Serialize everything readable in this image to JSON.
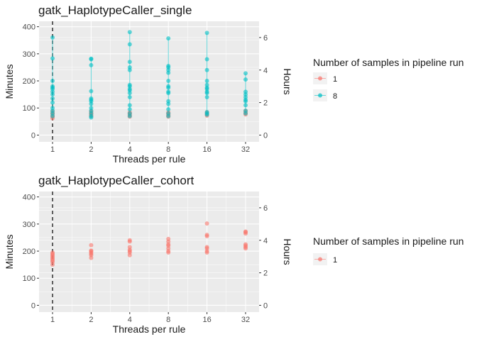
{
  "colors": {
    "panel_bg": "#EBEBEB",
    "grid_major": "#FFFFFF",
    "series_1": "#F8766D",
    "series_8": "#00BFC4",
    "tick_text": "#4D4D4D",
    "title_text": "#1A1A1A",
    "legend_key_bg": "#F2F2F2",
    "vline": "#000000"
  },
  "chart_data": [
    {
      "type": "scatter",
      "title": "gatk_HaplotypeCaller_single",
      "xlabel": "Threads per rule",
      "ylabel": "Minutes",
      "ylabel_right": "Hours",
      "x_scale": "log2",
      "x_ticks": [
        "1",
        "2",
        "4",
        "8",
        "16",
        "32"
      ],
      "y_ticks": [
        "0",
        "100",
        "200",
        "300",
        "400"
      ],
      "y_right_ticks": [
        "0",
        "2",
        "4",
        "6"
      ],
      "ylim": [
        -25,
        420
      ],
      "vline_x": 1,
      "grid": true,
      "legend": {
        "title": "Number of samples in pipeline run",
        "position": "right",
        "entries": [
          "1",
          "8"
        ]
      },
      "series": [
        {
          "name": "1",
          "color_key": "series_1",
          "points": [
            [
              1,
              62
            ],
            [
              1,
              68
            ],
            [
              1,
              72
            ],
            [
              1,
              78
            ],
            [
              1,
              82
            ],
            [
              1,
              88
            ],
            [
              2,
              70
            ],
            [
              2,
              74
            ],
            [
              2,
              78
            ],
            [
              2,
              83
            ],
            [
              2,
              88
            ],
            [
              4,
              68
            ],
            [
              4,
              72
            ],
            [
              4,
              76
            ],
            [
              4,
              80
            ],
            [
              4,
              84
            ],
            [
              8,
              68
            ],
            [
              8,
              72
            ],
            [
              8,
              76
            ],
            [
              8,
              80
            ],
            [
              8,
              84
            ],
            [
              16,
              72
            ],
            [
              16,
              76
            ],
            [
              16,
              80
            ],
            [
              16,
              84
            ],
            [
              32,
              76
            ],
            [
              32,
              80
            ],
            [
              32,
              85
            ],
            [
              32,
              90
            ]
          ],
          "ranges": [
            [
              1,
              62,
              88
            ],
            [
              2,
              70,
              88
            ],
            [
              4,
              68,
              84
            ],
            [
              8,
              68,
              84
            ],
            [
              16,
              72,
              84
            ],
            [
              32,
              76,
              90
            ]
          ]
        },
        {
          "name": "8",
          "color_key": "series_8",
          "points": [
            [
              1,
              70
            ],
            [
              1,
              80
            ],
            [
              1,
              90
            ],
            [
              1,
              100
            ],
            [
              1,
              120
            ],
            [
              1,
              135
            ],
            [
              1,
              150
            ],
            [
              1,
              160
            ],
            [
              1,
              170
            ],
            [
              1,
              175
            ],
            [
              1,
              180
            ],
            [
              1,
              200
            ],
            [
              1,
              283
            ],
            [
              1,
              360
            ],
            [
              2,
              65
            ],
            [
              2,
              70
            ],
            [
              2,
              80
            ],
            [
              2,
              90
            ],
            [
              2,
              100
            ],
            [
              2,
              115
            ],
            [
              2,
              125
            ],
            [
              2,
              130
            ],
            [
              2,
              135
            ],
            [
              2,
              162
            ],
            [
              2,
              258
            ],
            [
              2,
              280
            ],
            [
              2,
              282
            ],
            [
              4,
              70
            ],
            [
              4,
              80
            ],
            [
              4,
              95
            ],
            [
              4,
              110
            ],
            [
              4,
              140
            ],
            [
              4,
              155
            ],
            [
              4,
              165
            ],
            [
              4,
              170
            ],
            [
              4,
              180
            ],
            [
              4,
              185
            ],
            [
              4,
              240
            ],
            [
              4,
              250
            ],
            [
              4,
              270
            ],
            [
              4,
              335
            ],
            [
              4,
              380
            ],
            [
              8,
              70
            ],
            [
              8,
              80
            ],
            [
              8,
              95
            ],
            [
              8,
              115
            ],
            [
              8,
              125
            ],
            [
              8,
              155
            ],
            [
              8,
              160
            ],
            [
              8,
              175
            ],
            [
              8,
              180
            ],
            [
              8,
              200
            ],
            [
              8,
              230
            ],
            [
              8,
              240
            ],
            [
              8,
              250
            ],
            [
              8,
              255
            ],
            [
              8,
              357
            ],
            [
              16,
              75
            ],
            [
              16,
              80
            ],
            [
              16,
              85
            ],
            [
              16,
              140
            ],
            [
              16,
              155
            ],
            [
              16,
              160
            ],
            [
              16,
              170
            ],
            [
              16,
              175
            ],
            [
              16,
              185
            ],
            [
              16,
              200
            ],
            [
              16,
              240
            ],
            [
              16,
              280
            ],
            [
              16,
              377
            ],
            [
              32,
              80
            ],
            [
              32,
              90
            ],
            [
              32,
              110
            ],
            [
              32,
              125
            ],
            [
              32,
              130
            ],
            [
              32,
              140
            ],
            [
              32,
              150
            ],
            [
              32,
              160
            ],
            [
              32,
              205
            ],
            [
              32,
              228
            ]
          ],
          "ranges": [
            [
              1,
              70,
              360
            ],
            [
              2,
              65,
              282
            ],
            [
              4,
              70,
              380
            ],
            [
              8,
              70,
              357
            ],
            [
              16,
              75,
              377
            ],
            [
              32,
              80,
              228
            ]
          ]
        }
      ]
    },
    {
      "type": "scatter",
      "title": "gatk_HaplotypeCaller_cohort",
      "xlabel": "Threads per rule",
      "ylabel": "Minutes",
      "ylabel_right": "Hours",
      "x_scale": "log2",
      "x_ticks": [
        "1",
        "2",
        "4",
        "8",
        "16",
        "32"
      ],
      "y_ticks": [
        "0",
        "100",
        "200",
        "300",
        "400"
      ],
      "y_right_ticks": [
        "0",
        "2",
        "4",
        "6"
      ],
      "ylim": [
        -25,
        420
      ],
      "vline_x": 1,
      "grid": true,
      "legend": {
        "title": "Number of samples in pipeline run",
        "position": "right",
        "entries": [
          "1"
        ]
      },
      "series": [
        {
          "name": "1",
          "color_key": "series_1",
          "points": [
            [
              1,
              150
            ],
            [
              1,
              160
            ],
            [
              1,
              165
            ],
            [
              1,
              170
            ],
            [
              1,
              175
            ],
            [
              1,
              180
            ],
            [
              1,
              185
            ],
            [
              1,
              190
            ],
            [
              1,
              195
            ],
            [
              2,
              175
            ],
            [
              2,
              185
            ],
            [
              2,
              190
            ],
            [
              2,
              195
            ],
            [
              2,
              200
            ],
            [
              2,
              202
            ],
            [
              2,
              222
            ],
            [
              4,
              185
            ],
            [
              4,
              195
            ],
            [
              4,
              200
            ],
            [
              4,
              205
            ],
            [
              4,
              215
            ],
            [
              4,
              235
            ],
            [
              4,
              240
            ],
            [
              8,
              195
            ],
            [
              8,
              200
            ],
            [
              8,
              210
            ],
            [
              8,
              220
            ],
            [
              8,
              225
            ],
            [
              8,
              235
            ],
            [
              8,
              245
            ],
            [
              16,
              195
            ],
            [
              16,
              200
            ],
            [
              16,
              210
            ],
            [
              16,
              215
            ],
            [
              16,
              255
            ],
            [
              16,
              260
            ],
            [
              16,
              302
            ],
            [
              32,
              210
            ],
            [
              32,
              215
            ],
            [
              32,
              220
            ],
            [
              32,
              225
            ],
            [
              32,
              265
            ],
            [
              32,
              270
            ],
            [
              32,
              272
            ]
          ],
          "ranges": []
        }
      ]
    }
  ]
}
